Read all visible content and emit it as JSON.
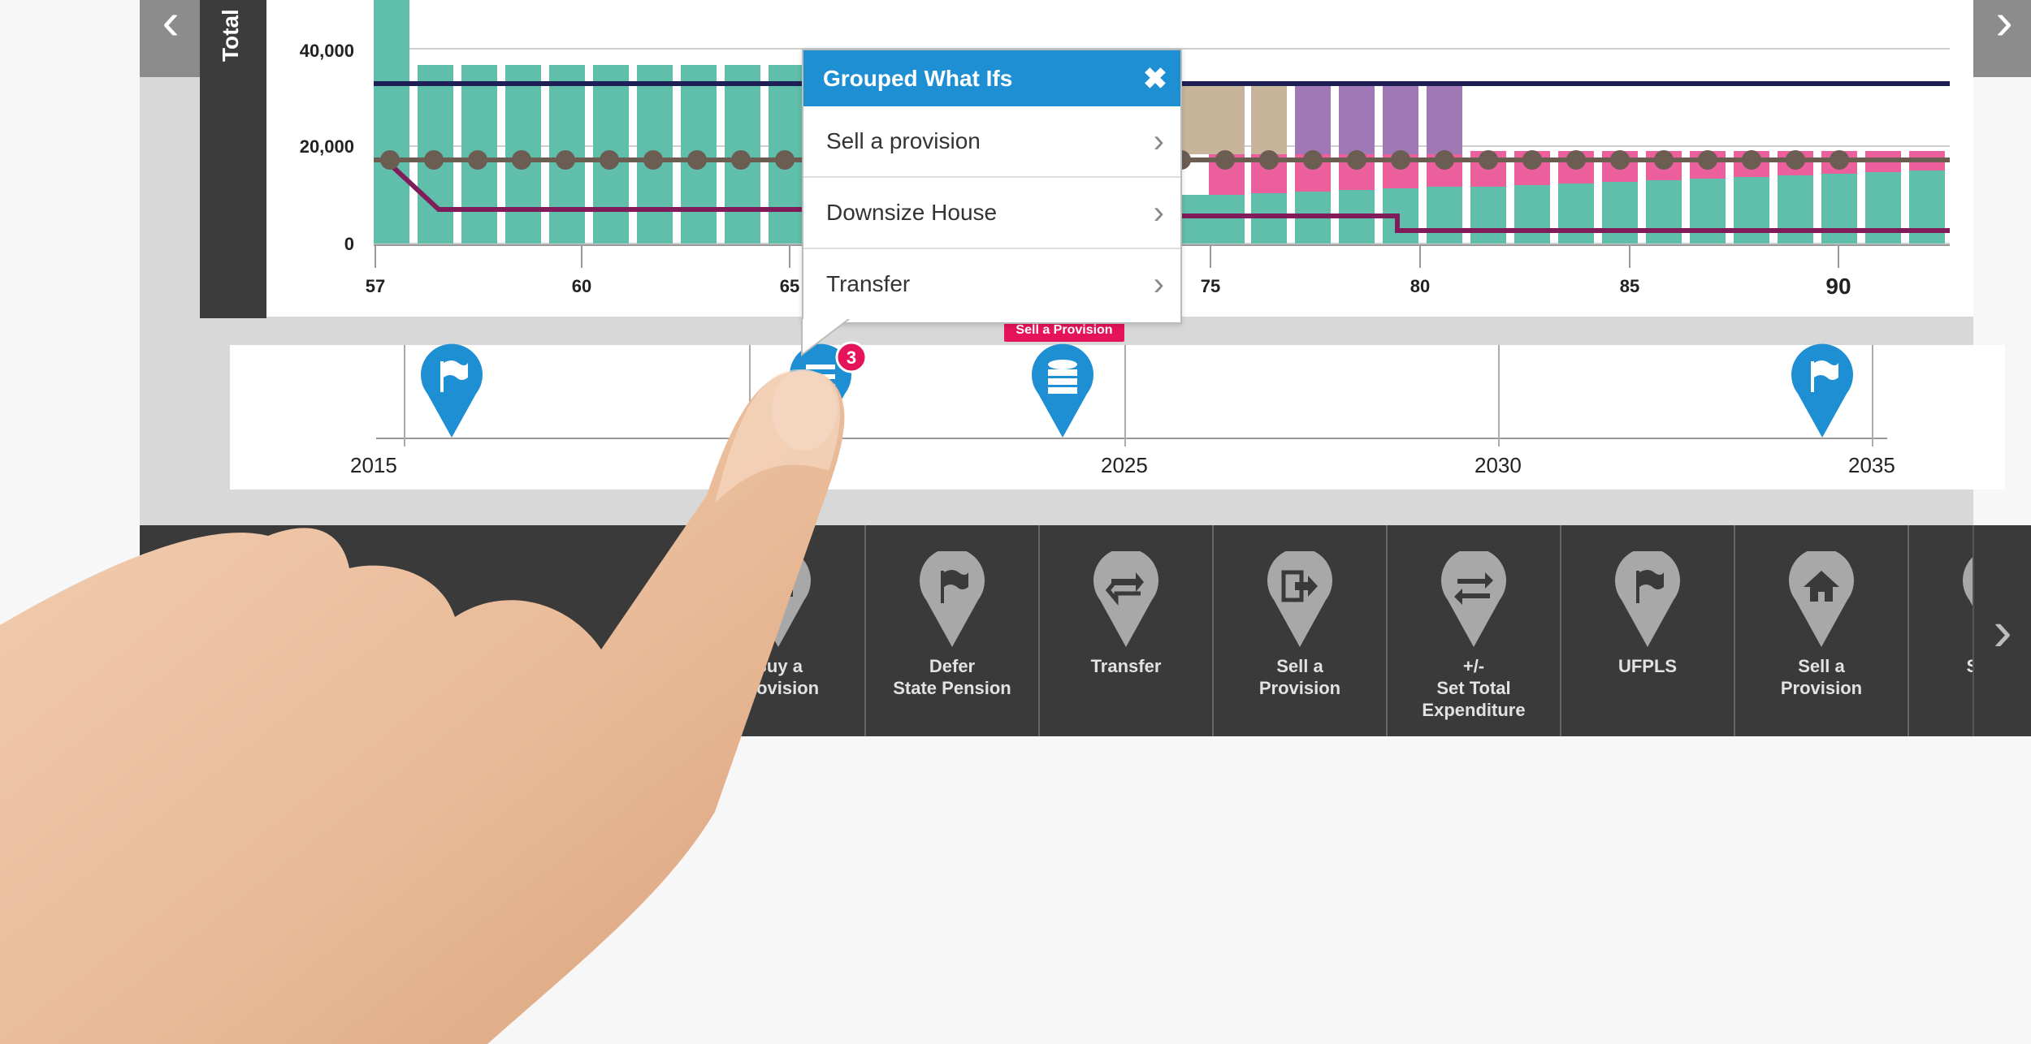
{
  "chart_data": {
    "type": "bar",
    "ylabel": "Total",
    "y_ticks": [
      "40,000",
      "20,000",
      "0"
    ],
    "x_ticks": [
      "57",
      "60",
      "65",
      "75",
      "80",
      "85",
      "90"
    ],
    "colors": {
      "teal": "#5fbfaa",
      "pink": "#ea5f9c",
      "tan": "#c8b49a",
      "purple": "#a178b6",
      "navy": "#1e2055",
      "brown": "#6c5d53",
      "plum": "#7f1c59"
    }
  },
  "popup": {
    "title": "Grouped What Ifs",
    "items": [
      "Sell a provision",
      "Downsize House",
      "Transfer"
    ]
  },
  "timeline": {
    "years": [
      "2015",
      "2025",
      "2030",
      "2035"
    ],
    "badge_count": "3",
    "tag_label": "Sell a Provision"
  },
  "tray": {
    "items": [
      {
        "label": "Buy a\nProvision",
        "icon": "database-icon"
      },
      {
        "label": "Defer\nState Pension",
        "icon": "flag-icon"
      },
      {
        "label": "Transfer",
        "icon": "transfer-icon"
      },
      {
        "label": "Sell a\nProvision",
        "icon": "exit-icon"
      },
      {
        "label": "+/-\nSet Total\nExpenditure",
        "icon": "swap-icon"
      },
      {
        "label": "UFPLS",
        "icon": "flag-icon"
      },
      {
        "label": "Sell a\nProvision",
        "icon": "house-icon"
      },
      {
        "label": "Switch",
        "icon": "house-icon"
      }
    ]
  }
}
